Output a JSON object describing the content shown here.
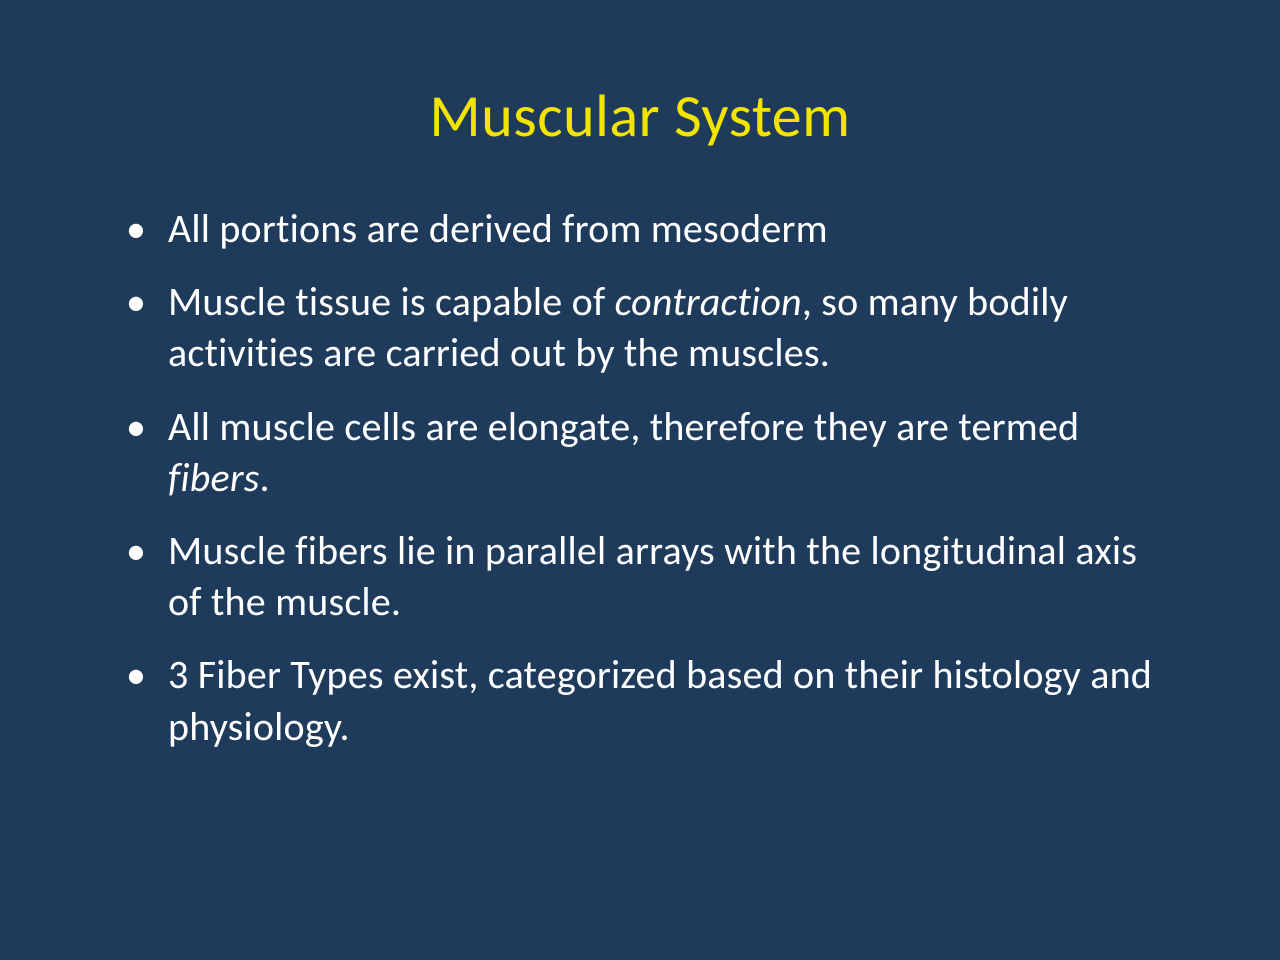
{
  "slide": {
    "background_color": "#1f3b5c",
    "title": {
      "text": "Muscular System",
      "color": "#f2e300",
      "font_size": 60,
      "font_weight": 400,
      "align": "center"
    },
    "body": {
      "text_color": "#ffffff",
      "font_size": 40,
      "bullet_char": "•",
      "bullets": [
        {
          "runs": [
            {
              "text": "All portions are derived from mesoderm",
              "italic": false
            }
          ]
        },
        {
          "runs": [
            {
              "text": "Muscle tissue is capable of ",
              "italic": false
            },
            {
              "text": "contraction",
              "italic": true
            },
            {
              "text": ", so many bodily activities are carried out by the muscles.",
              "italic": false
            }
          ]
        },
        {
          "runs": [
            {
              "text": "All muscle cells are elongate, therefore they are termed ",
              "italic": false
            },
            {
              "text": "fibers",
              "italic": true
            },
            {
              "text": ".",
              "italic": false
            }
          ]
        },
        {
          "runs": [
            {
              "text": "Muscle fibers lie in parallel arrays with the longitudinal axis of the muscle.",
              "italic": false
            }
          ]
        },
        {
          "runs": [
            {
              "text": "3 Fiber Types exist, categorized based on their histology and physiology.",
              "italic": false
            }
          ]
        }
      ]
    }
  }
}
